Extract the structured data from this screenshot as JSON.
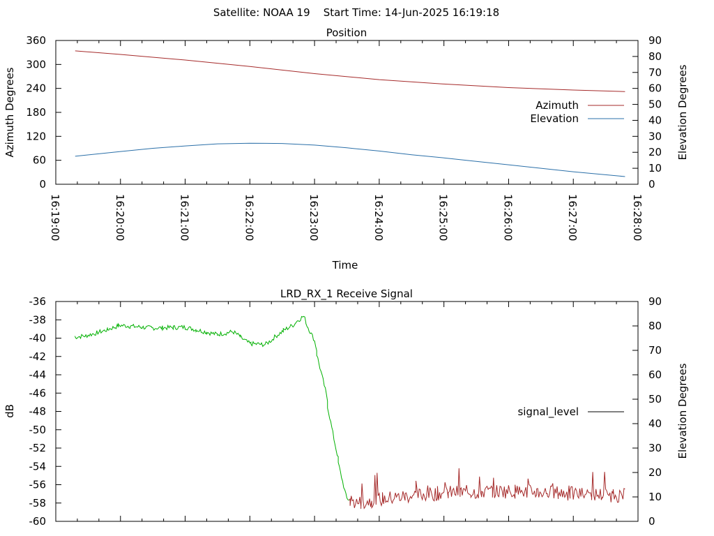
{
  "header": {
    "title": "Satellite: NOAA 19    Start Time: 14-Jun-2025 16:19:18"
  },
  "chart_data": [
    {
      "type": "line",
      "title": "Position",
      "xlabel": "Time",
      "ylabel": "Azimuth Degrees",
      "y2label": "Elevation Degrees",
      "xlim": [
        "16:19:00",
        "16:28:00"
      ],
      "ylim": [
        0,
        360
      ],
      "y2lim": [
        0,
        90
      ],
      "x_tick_labels": [
        "16:19:00",
        "16:20:00",
        "16:21:00",
        "16:22:00",
        "16:23:00",
        "16:24:00",
        "16:25:00",
        "16:26:00",
        "16:27:00",
        "16:28:00"
      ],
      "y_tick_labels": [
        "0",
        "60",
        "120",
        "180",
        "240",
        "300",
        "360"
      ],
      "y2_tick_labels": [
        "0",
        "10",
        "20",
        "30",
        "40",
        "50",
        "60",
        "70",
        "80",
        "90"
      ],
      "legend_position": "right",
      "grid": false,
      "series": [
        {
          "name": "Azimuth",
          "axis": "left",
          "color": "#a52a2a",
          "x": [
            "16:19:18",
            "16:20:00",
            "16:21:00",
            "16:22:00",
            "16:23:00",
            "16:24:00",
            "16:25:00",
            "16:26:00",
            "16:27:00",
            "16:27:48"
          ],
          "y": [
            334,
            325,
            311,
            295,
            277,
            262,
            251,
            242,
            236,
            232
          ]
        },
        {
          "name": "Elevation",
          "axis": "right",
          "color": "#2a6fa8",
          "x": [
            "16:19:18",
            "16:20:00",
            "16:20:30",
            "16:21:00",
            "16:21:30",
            "16:22:00",
            "16:22:30",
            "16:23:00",
            "16:23:30",
            "16:24:00",
            "16:24:30",
            "16:25:00",
            "16:25:30",
            "16:26:00",
            "16:26:30",
            "16:27:00",
            "16:27:48"
          ],
          "y": [
            17.5,
            20.5,
            22.5,
            24,
            25.3,
            25.7,
            25.5,
            24.5,
            22.8,
            20.8,
            18.5,
            16.5,
            14.3,
            12.2,
            10,
            7.8,
            4.8
          ]
        }
      ]
    },
    {
      "type": "line",
      "title": "LRD_RX_1 Receive Signal",
      "ylabel": "dB",
      "y2label": "Elevation Degrees",
      "xlim": [
        "16:19:00",
        "16:28:00"
      ],
      "ylim": [
        -60,
        -36
      ],
      "y2lim": [
        0,
        90
      ],
      "y_tick_labels": [
        "-60",
        "-58",
        "-56",
        "-54",
        "-52",
        "-50",
        "-48",
        "-46",
        "-44",
        "-42",
        "-40",
        "-38",
        "-36"
      ],
      "y2_tick_labels": [
        "0",
        "10",
        "20",
        "30",
        "40",
        "50",
        "60",
        "70",
        "80",
        "90"
      ],
      "legend_position": "right",
      "grid": false,
      "series": [
        {
          "name": "signal_level",
          "color": "#00b000",
          "low_color": "#a52a2a",
          "x": [
            "16:19:18",
            "16:19:30",
            "16:19:45",
            "16:20:00",
            "16:20:30",
            "16:21:00",
            "16:21:30",
            "16:21:45",
            "16:22:00",
            "16:22:15",
            "16:22:30",
            "16:22:40",
            "16:22:50",
            "16:23:00",
            "16:23:10",
            "16:23:20",
            "16:23:30",
            "16:23:40",
            "16:24:00",
            "16:24:30",
            "16:25:00",
            "16:25:30",
            "16:26:00",
            "16:26:30",
            "16:27:00",
            "16:27:30",
            "16:27:48"
          ],
          "y": [
            -39.9,
            -39.7,
            -39.2,
            -38.6,
            -38.9,
            -38.8,
            -39.6,
            -39.3,
            -40.6,
            -40.7,
            -39.3,
            -38.6,
            -37.6,
            -40.2,
            -45.5,
            -52.0,
            -57.5,
            -58.0,
            -57.6,
            -57.2,
            -56.9,
            -56.8,
            -56.7,
            -56.8,
            -57.0,
            -57.1,
            -57.2
          ]
        }
      ]
    }
  ]
}
